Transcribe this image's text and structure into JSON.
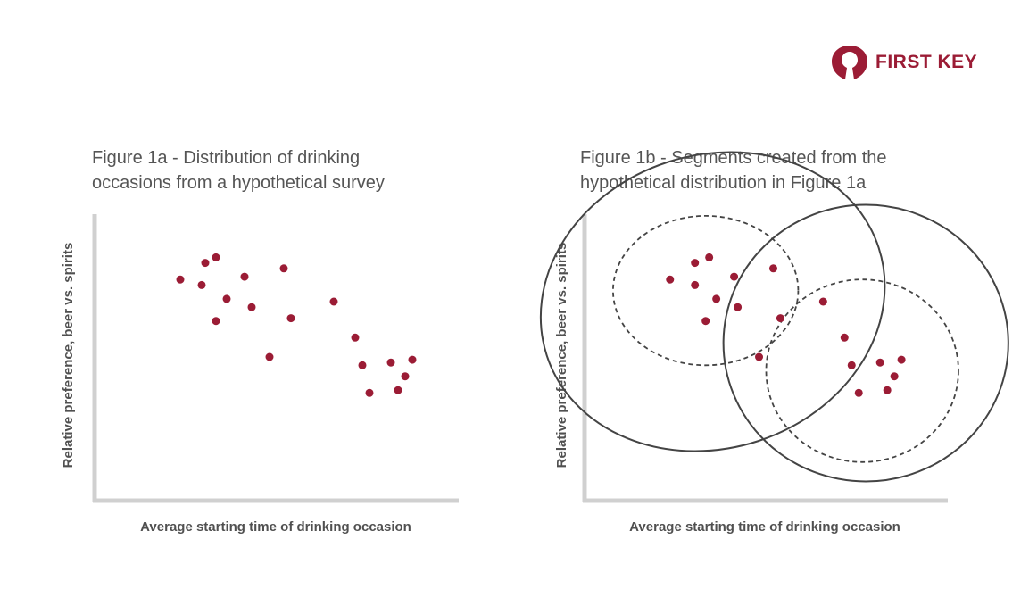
{
  "logo": {
    "text": "FIRST KEY",
    "icon": "keyhole-icon",
    "color": "#9b1c35"
  },
  "colors": {
    "point": "#9b1c35",
    "axis": "#d0d0d0",
    "segment_line": "#444444"
  },
  "chart_data": [
    {
      "type": "scatter",
      "title_lines": [
        "Figure 1a  - Distribution of drinking",
        "occasions from a hypothetical survey"
      ],
      "xlabel": "Average starting time of drinking occasion",
      "ylabel": "Relative preference, beer vs. spirits",
      "xlim": [
        0,
        100
      ],
      "ylim": [
        0,
        100
      ],
      "ticks": "none",
      "grid": false,
      "points": [
        [
          23,
          78
        ],
        [
          29,
          76
        ],
        [
          30,
          84
        ],
        [
          33,
          86
        ],
        [
          36,
          71
        ],
        [
          33,
          63
        ],
        [
          41,
          79
        ],
        [
          43,
          68
        ],
        [
          52,
          82
        ],
        [
          54,
          64
        ],
        [
          48,
          50
        ],
        [
          66,
          70
        ],
        [
          72,
          57
        ],
        [
          74,
          47
        ],
        [
          76,
          37
        ],
        [
          82,
          48
        ],
        [
          84,
          38
        ],
        [
          86,
          43
        ],
        [
          88,
          49
        ]
      ]
    },
    {
      "type": "scatter",
      "title_lines": [
        "Figure 1b - Segments created from the",
        "hypothetical distribution in Figure 1a"
      ],
      "xlabel": "Average starting time of drinking occasion",
      "ylabel": "Relative preference, beer vs. spirits",
      "xlim": [
        0,
        100
      ],
      "ylim": [
        0,
        100
      ],
      "ticks": "none",
      "grid": false,
      "points": [
        [
          23,
          78
        ],
        [
          30,
          76
        ],
        [
          30,
          84
        ],
        [
          34,
          86
        ],
        [
          36,
          71
        ],
        [
          33,
          63
        ],
        [
          41,
          79
        ],
        [
          42,
          68
        ],
        [
          52,
          82
        ],
        [
          54,
          64
        ],
        [
          48,
          50
        ],
        [
          66,
          70
        ],
        [
          72,
          57
        ],
        [
          74,
          47
        ],
        [
          76,
          37
        ],
        [
          82,
          48
        ],
        [
          84,
          38
        ],
        [
          86,
          43
        ],
        [
          88,
          49
        ]
      ],
      "segments": [
        {
          "name": "",
          "style": "solid",
          "cx": 35,
          "cy": 70,
          "rx": 49,
          "ry": 53,
          "rotation": -18
        },
        {
          "name": "",
          "style": "dashed",
          "cx": 33,
          "cy": 74,
          "rx": 26,
          "ry": 27,
          "rotation": 0
        },
        {
          "name": "",
          "style": "solid",
          "cx": 78,
          "cy": 55,
          "rx": 40,
          "ry": 50,
          "rotation": 0
        },
        {
          "name": "",
          "style": "dashed",
          "cx": 77,
          "cy": 45,
          "rx": 27,
          "ry": 33,
          "rotation": 0
        }
      ]
    }
  ]
}
